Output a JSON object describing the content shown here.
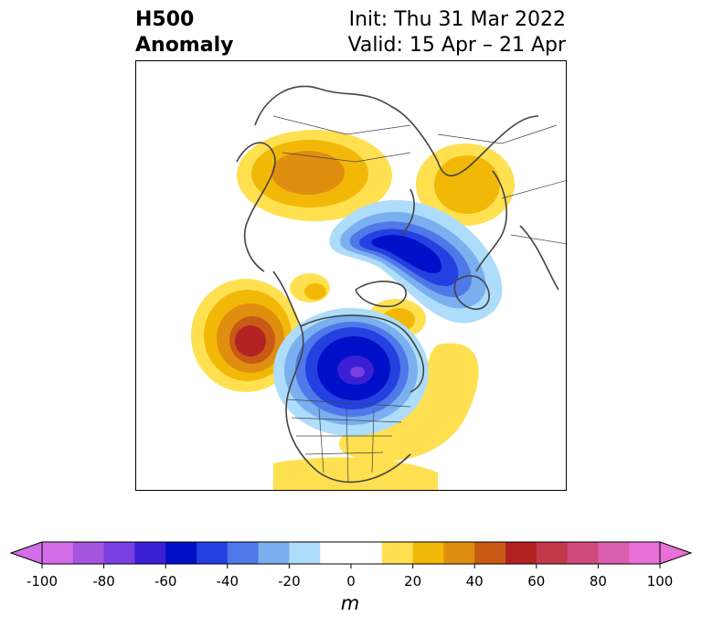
{
  "title": {
    "line1": "H500",
    "line2": "Anomaly"
  },
  "subtitle": {
    "init": "Init: Thu 31 Mar 2022",
    "valid": "Valid: 15 Apr – 21 Apr"
  },
  "colorbar": {
    "unit": "m",
    "ticks": [
      "-100",
      "-80",
      "-60",
      "-40",
      "-20",
      "0",
      "20",
      "40",
      "60",
      "80",
      "100"
    ],
    "levels": [
      -100,
      -90,
      -80,
      -70,
      -60,
      -50,
      -40,
      -30,
      -20,
      -10,
      10,
      20,
      30,
      40,
      50,
      60,
      70,
      80,
      90,
      100
    ],
    "colors": [
      "#d36ee8",
      "#a455e0",
      "#7a3fe0",
      "#3a1fd4",
      "#0010c8",
      "#2440e0",
      "#4f78e8",
      "#7aaff0",
      "#aedcfb",
      "#ffffff",
      "#ffe050",
      "#f2b808",
      "#e08e10",
      "#c85a16",
      "#b22222",
      "#c0384a",
      "#cf4a7c",
      "#d95fae",
      "#e870d6"
    ],
    "extend_low": "#d36ee8",
    "extend_high": "#e870d6"
  }
}
